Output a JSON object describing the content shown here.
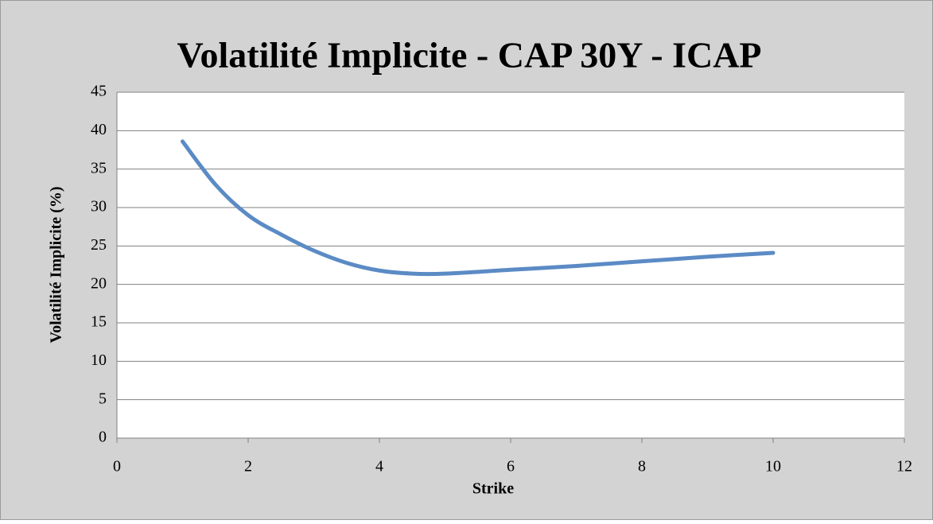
{
  "chart_data": {
    "type": "line",
    "title": "Volatilité Implicite - CAP 30Y - ICAP",
    "x_label": "Strike",
    "y_label": "Volatilité Implicite (%)",
    "series": [
      {
        "name": "ICAP",
        "color": "#5b8bc5",
        "x": [
          1,
          1.5,
          2,
          2.5,
          3,
          3.5,
          4,
          4.5,
          5,
          6,
          7,
          8,
          9,
          10
        ],
        "values": [
          38.6,
          33,
          29,
          26.5,
          24.4,
          22.8,
          21.8,
          21.4,
          21.4,
          21.9,
          22.4,
          23,
          23.6,
          24.1
        ]
      }
    ],
    "xlim": [
      0,
      12
    ],
    "xticks": [
      0,
      2,
      4,
      6,
      8,
      10,
      12
    ],
    "ylim": [
      0,
      45
    ],
    "yticks": [
      0,
      5,
      10,
      15,
      20,
      25,
      30,
      35,
      40,
      45
    ],
    "grid": true
  }
}
